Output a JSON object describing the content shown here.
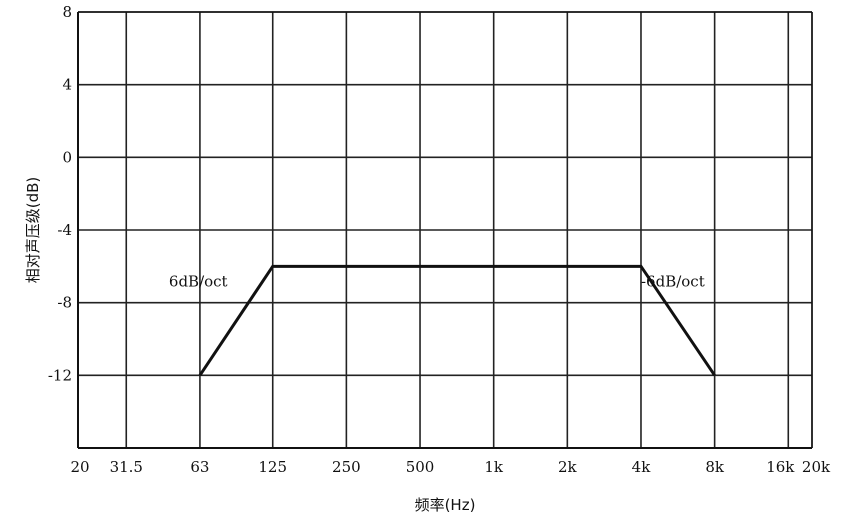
{
  "chart_data": {
    "type": "line",
    "title": "",
    "xlabel": "频率(Hz)",
    "ylabel": "相对声压级(dB)",
    "x_scale": "log",
    "x_ticks": [
      {
        "value": 20,
        "label": "20"
      },
      {
        "value": 31.5,
        "label": "31.5"
      },
      {
        "value": 63,
        "label": "63"
      },
      {
        "value": 125,
        "label": "125"
      },
      {
        "value": 250,
        "label": "250"
      },
      {
        "value": 500,
        "label": "500"
      },
      {
        "value": 1000,
        "label": "1k"
      },
      {
        "value": 2000,
        "label": "2k"
      },
      {
        "value": 4000,
        "label": "4k"
      },
      {
        "value": 8000,
        "label": "8k"
      },
      {
        "value": 16000,
        "label": "16k"
      },
      {
        "value": 20000,
        "label": "20k"
      }
    ],
    "y_ticks": [
      {
        "value": 8,
        "label": "8"
      },
      {
        "value": 4,
        "label": "4"
      },
      {
        "value": 0,
        "label": "0"
      },
      {
        "value": -4,
        "label": "-4"
      },
      {
        "value": -8,
        "label": "-8"
      },
      {
        "value": -12,
        "label": "-12"
      }
    ],
    "xlim": [
      20,
      20000
    ],
    "ylim": [
      -16,
      8
    ],
    "grid": true,
    "series": [
      {
        "x": [
          63,
          125,
          4000,
          8000
        ],
        "y": [
          -12,
          -6,
          -6,
          -12
        ]
      }
    ],
    "annotations": [
      {
        "text": "6dB/oct",
        "x": 63,
        "y": -7
      },
      {
        "text": "-6dB/oct",
        "x": 4000,
        "y": -7
      }
    ],
    "colors": {
      "line": "#111111",
      "grid": "#222222",
      "background": "#ffffff"
    }
  }
}
